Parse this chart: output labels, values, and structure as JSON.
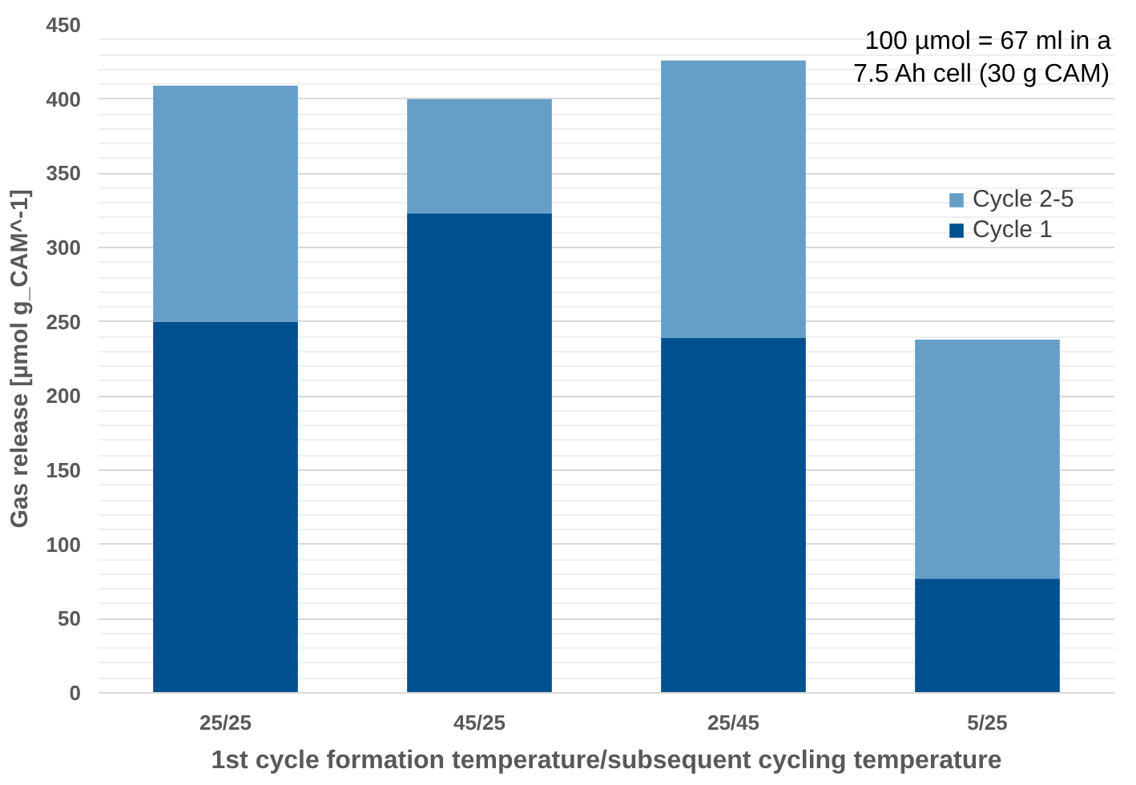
{
  "chart_data": {
    "type": "bar",
    "stacked": true,
    "xlabel": "1st cycle formation temperature/subsequent cycling temperature",
    "ylabel": "Gas release [µmol g_CAM^-1]",
    "categories": [
      "25/25",
      "45/25",
      "25/45",
      "5/25"
    ],
    "series": [
      {
        "name": "Cycle 1",
        "color": "#00508f",
        "values": [
          250,
          323,
          239,
          77
        ]
      },
      {
        "name": "Cycle 2-5",
        "color": "#659fc8",
        "values": [
          159,
          77,
          187,
          161
        ]
      }
    ],
    "ylim": [
      0,
      450
    ],
    "yticks": [
      0,
      50,
      100,
      150,
      200,
      250,
      300,
      350,
      400,
      450
    ],
    "grid": "y",
    "legend": "right",
    "annotations": [
      "100 µmol = 67 ml in a 7.5 Ah cell (30 g CAM)"
    ]
  }
}
